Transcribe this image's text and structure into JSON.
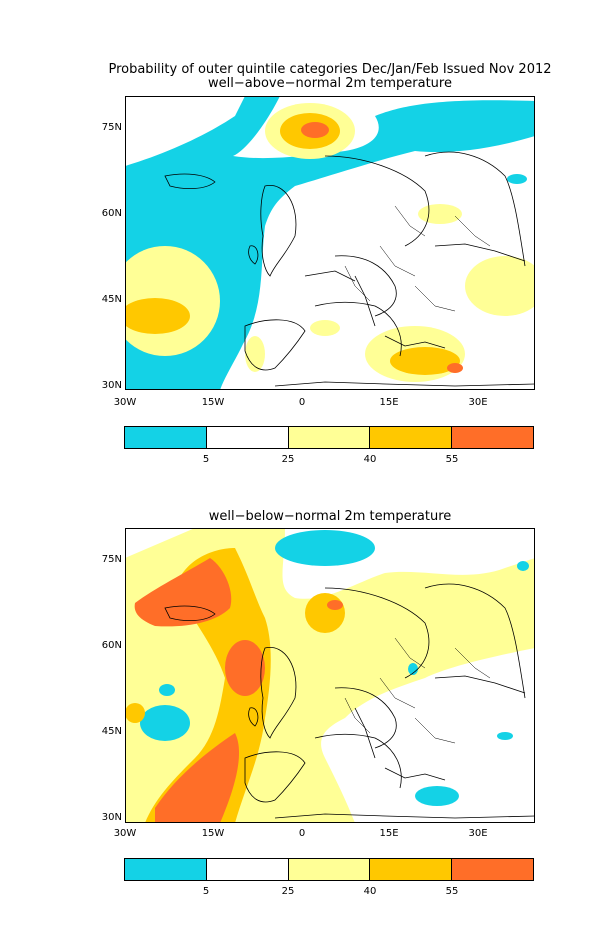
{
  "figure": {
    "main_title": "Probability of outer quintile categories Dec/Jan/Feb Issued Nov 2012",
    "panel1_title": "well−above−normal 2m temperature",
    "panel2_title": "well−below−normal 2m temperature"
  },
  "axes": {
    "lat_labels": [
      "75N",
      "60N",
      "45N",
      "30N"
    ],
    "lon_labels": [
      "30W",
      "15W",
      "0",
      "15E",
      "30E"
    ]
  },
  "colorbar": {
    "tick_labels": [
      "5",
      "25",
      "40",
      "55"
    ],
    "colors": [
      "#14d2e6",
      "#ffffff",
      "#ffff96",
      "#ffc800",
      "#ff6e28"
    ]
  },
  "palette": {
    "cyan": "#14d2e6",
    "pale_yellow": "#ffff96",
    "orange": "#ffc800",
    "red_orange": "#ff6e28"
  }
}
